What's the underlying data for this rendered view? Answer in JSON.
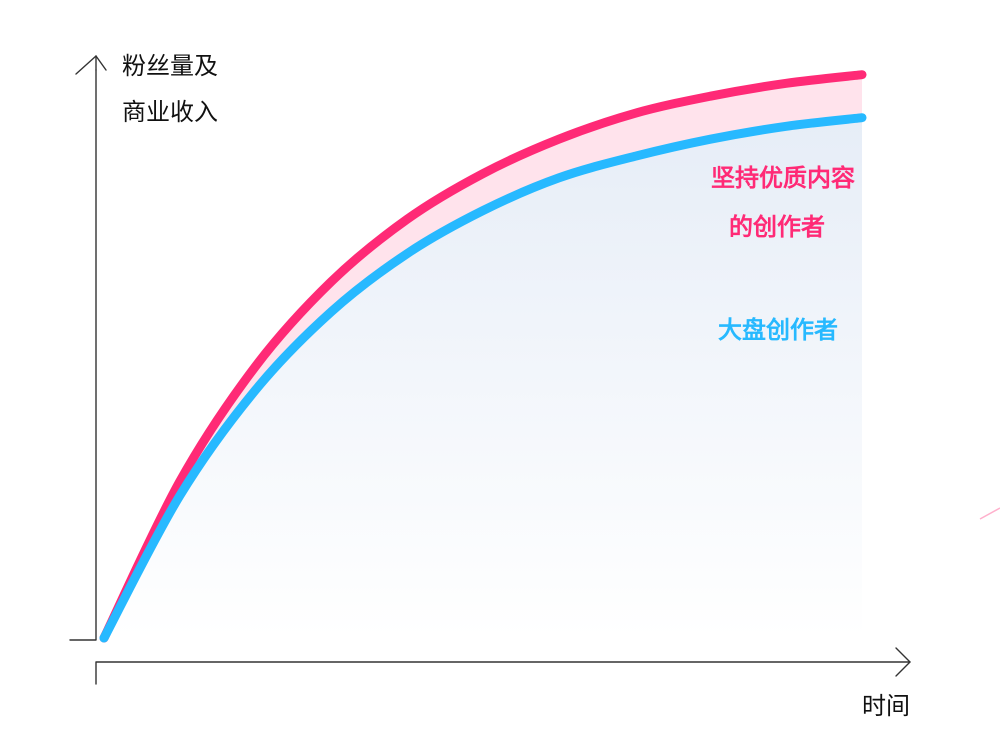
{
  "chart_data": {
    "type": "line",
    "ylabel_lines": [
      "粉丝量及",
      "商业收入"
    ],
    "xlabel": "时间",
    "series": [
      {
        "label_lines": [
          "坚持优质内容",
          "的创作者"
        ],
        "color": "#ff2a76",
        "values": [
          0,
          3.64,
          6.32,
          8.29,
          9.74,
          10.8,
          11.6,
          12.2,
          12.6,
          12.9,
          13.1
        ]
      },
      {
        "label_lines": [
          "大盘创作者"
        ],
        "color": "#27b9ff",
        "values": [
          0,
          3.31,
          5.77,
          7.59,
          8.94,
          9.94,
          10.7,
          11.2,
          11.6,
          11.9,
          12.1
        ]
      }
    ],
    "x": [
      0,
      1,
      2,
      3,
      4,
      5,
      6,
      7,
      8,
      9,
      10
    ],
    "xlim": [
      0,
      10
    ],
    "ylim": [
      0,
      14
    ],
    "gridlines": false,
    "fills": {
      "between_series": "#ffe3ec",
      "under_lower_top": "#e6edf7",
      "under_lower_bottom": "#ffffff"
    }
  }
}
